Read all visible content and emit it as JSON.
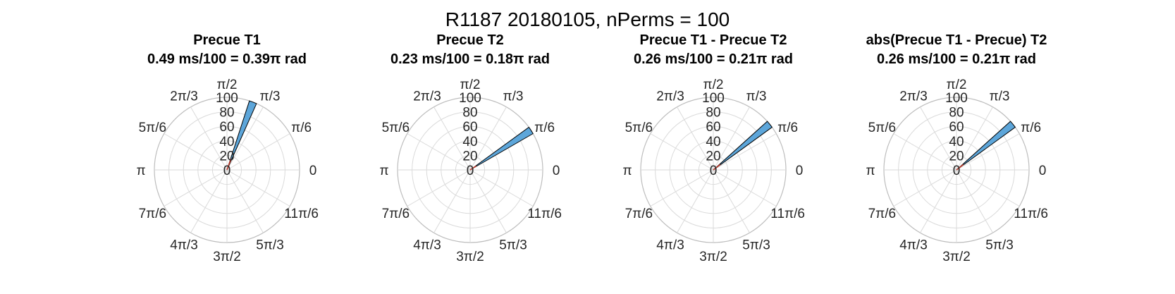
{
  "figure": {
    "title": "R1187 20180105, nPerms = 100"
  },
  "colors": {
    "bar_fill": "#5DA6DA",
    "bar_edge": "#000000",
    "resultant": "#C0392B",
    "grid": "#DADADA",
    "outer": "#BDBDBD"
  },
  "chart_data": [
    {
      "type": "polar-histogram",
      "title": "Precue T1",
      "subtitle": "0.49 ms/100 = 0.39π rad",
      "theta_tick_labels": [
        "0",
        "π/6",
        "π/3",
        "π/2",
        "2π/3",
        "5π/6",
        "π",
        "7π/6",
        "4π/3",
        "3π/2",
        "5π/3",
        "11π/6"
      ],
      "r_tick_labels": [
        "0",
        "20",
        "40",
        "60",
        "80",
        "100"
      ],
      "rlim": [
        0,
        100
      ],
      "bars": [
        {
          "theta_start_deg": 66,
          "theta_end_deg": 72,
          "value": 100
        }
      ],
      "resultant": {
        "theta_deg": 70,
        "length": 16
      }
    },
    {
      "type": "polar-histogram",
      "title": "Precue T2",
      "subtitle": "0.23 ms/100 = 0.18π rad",
      "theta_tick_labels": [
        "0",
        "π/6",
        "π/3",
        "π/2",
        "2π/3",
        "5π/6",
        "π",
        "7π/6",
        "4π/3",
        "3π/2",
        "5π/3",
        "11π/6"
      ],
      "r_tick_labels": [
        "0",
        "20",
        "40",
        "60",
        "80",
        "100"
      ],
      "rlim": [
        0,
        100
      ],
      "bars": [
        {
          "theta_start_deg": 30,
          "theta_end_deg": 36,
          "value": 100
        }
      ],
      "resultant": {
        "theta_deg": 33,
        "length": 10
      }
    },
    {
      "type": "polar-histogram",
      "title": "Precue T1 - Precue T2",
      "subtitle": "0.26 ms/100 = 0.21π rad",
      "theta_tick_labels": [
        "0",
        "π/6",
        "π/3",
        "π/2",
        "2π/3",
        "5π/6",
        "π",
        "7π/6",
        "4π/3",
        "3π/2",
        "5π/3",
        "11π/6"
      ],
      "r_tick_labels": [
        "0",
        "20",
        "40",
        "60",
        "80",
        "100"
      ],
      "rlim": [
        0,
        100
      ],
      "bars": [
        {
          "theta_start_deg": 36,
          "theta_end_deg": 42,
          "value": 100
        }
      ],
      "resultant": {
        "theta_deg": 38,
        "length": 12
      }
    },
    {
      "type": "polar-histogram",
      "title": "abs(Precue T1 - Precue) T2",
      "subtitle": "0.26 ms/100 = 0.21π rad",
      "theta_tick_labels": [
        "0",
        "π/6",
        "π/3",
        "π/2",
        "2π/3",
        "5π/6",
        "π",
        "7π/6",
        "4π/3",
        "3π/2",
        "5π/3",
        "11π/6"
      ],
      "r_tick_labels": [
        "0",
        "20",
        "40",
        "60",
        "80",
        "100"
      ],
      "rlim": [
        0,
        100
      ],
      "bars": [
        {
          "theta_start_deg": 36,
          "theta_end_deg": 42,
          "value": 100
        }
      ],
      "resultant": {
        "theta_deg": 38,
        "length": 12
      }
    }
  ]
}
